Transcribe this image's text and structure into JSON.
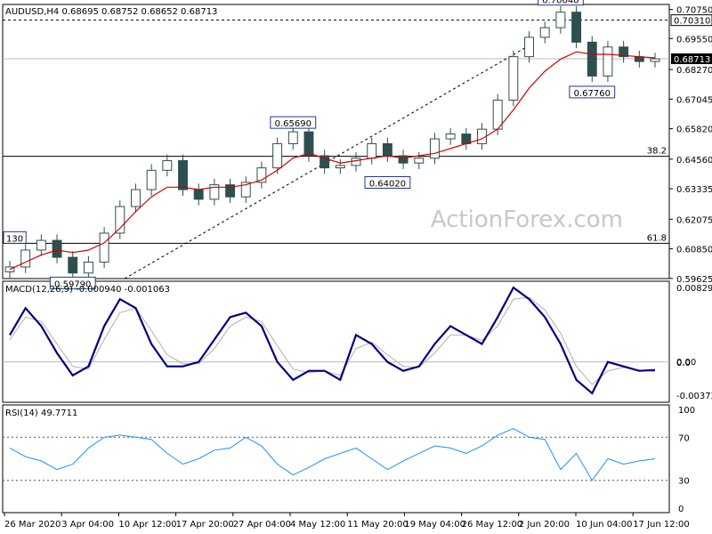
{
  "chart_data": [
    {
      "type": "line",
      "subtype": "candlestick",
      "title": "AUDUSD,H4  0.68695 0.68752 0.68652 0.68713",
      "watermark": "ActionForex.com",
      "y_ticks": [
        "0.70750",
        "0.69550",
        "0.68270",
        "0.67045",
        "0.65820",
        "0.64560",
        "0.63335",
        "0.62075",
        "0.60850",
        "0.59625"
      ],
      "ylim": [
        0.5962,
        0.7096
      ],
      "current_price": "0.68713",
      "resistance_label": "0.70310",
      "annotations": [
        {
          "label": "0.70640",
          "value": 0.7064
        },
        {
          "label": "0.67760",
          "value": 0.6776
        },
        {
          "label": "0.65690",
          "value": 0.6569
        },
        {
          "label": "0.64020",
          "value": 0.6402
        },
        {
          "label": "0.59790",
          "value": 0.5979
        },
        {
          "label": "130",
          "value": 0.613
        }
      ],
      "fib_levels": [
        {
          "label": "38.2",
          "value": 0.6468
        },
        {
          "label": "61.8",
          "value": 0.6108
        }
      ],
      "series": [
        {
          "values": [
            0.601,
            0.608,
            0.612,
            0.605,
            0.5985,
            0.603,
            0.615,
            0.626,
            0.633,
            0.641,
            0.645,
            0.633,
            0.629,
            0.635,
            0.63,
            0.636,
            0.642,
            0.652,
            0.6569,
            0.647,
            0.642,
            0.643,
            0.646,
            0.652,
            0.647,
            0.644,
            0.646,
            0.654,
            0.656,
            0.652,
            0.658,
            0.67,
            0.688,
            0.696,
            0.7,
            0.7064,
            0.694,
            0.68,
            0.692,
            0.688,
            0.686,
            0.6871
          ]
        },
        {
          "values": [
            0.6,
            0.603,
            0.606,
            0.608,
            0.607,
            0.608,
            0.611,
            0.617,
            0.624,
            0.63,
            0.634,
            0.634,
            0.633,
            0.634,
            0.634,
            0.635,
            0.637,
            0.641,
            0.646,
            0.648,
            0.646,
            0.644,
            0.645,
            0.646,
            0.647,
            0.646,
            0.647,
            0.648,
            0.65,
            0.652,
            0.654,
            0.658,
            0.666,
            0.675,
            0.682,
            0.687,
            0.69,
            0.689,
            0.689,
            0.6885,
            0.688,
            0.6875
          ]
        }
      ],
      "x_labels": [
        "26 Mar 2020",
        "3 Apr 04:00",
        "10 Apr 12:00",
        "17 Apr 20:00",
        "27 Apr 04:00",
        "4 May 12:00",
        "11 May 20:00",
        "19 May 04:00",
        "26 May 12:00",
        "2 Jun 20:00",
        "10 Jun 04:00",
        "17 Jun 12:00"
      ]
    },
    {
      "type": "line",
      "title": "MACD(12,26,9) -0.000940 -0.001063",
      "y_ticks": [
        "0.008296",
        "0.00",
        "0.0",
        "-0.003725"
      ],
      "ylim": [
        -0.0045,
        0.009
      ],
      "series": [
        {
          "values": [
            0.003,
            0.006,
            0.004,
            0.001,
            -0.0015,
            -0.0005,
            0.004,
            0.007,
            0.006,
            0.002,
            -0.0005,
            -0.0005,
            0.0,
            0.0025,
            0.005,
            0.0055,
            0.004,
            0.0,
            -0.002,
            -0.001,
            -0.001,
            -0.002,
            0.003,
            0.002,
            0.0,
            -0.001,
            -0.0005,
            0.002,
            0.004,
            0.003,
            0.002,
            0.005,
            0.0083,
            0.007,
            0.005,
            0.002,
            -0.002,
            -0.0035,
            0.0,
            -0.0005,
            -0.001,
            -0.0009
          ]
        },
        {
          "values": [
            0.0025,
            0.005,
            0.0045,
            0.002,
            -0.0005,
            -0.0008,
            0.0025,
            0.0055,
            0.006,
            0.0035,
            0.0008,
            -0.0002,
            -0.0002,
            0.0015,
            0.004,
            0.005,
            0.0045,
            0.0018,
            -0.0008,
            -0.0012,
            -0.001,
            -0.0015,
            0.0015,
            0.0022,
            0.0008,
            -0.0005,
            -0.0006,
            0.001,
            0.003,
            0.003,
            0.0024,
            0.004,
            0.007,
            0.0072,
            0.0058,
            0.0032,
            -0.0005,
            -0.0025,
            -0.001,
            -0.0006,
            -0.0009,
            -0.0011
          ]
        }
      ]
    },
    {
      "type": "line",
      "title": "RSI(14) 49.7711",
      "y_ticks": [
        "100",
        "70",
        "30",
        "0"
      ],
      "ylim": [
        0,
        100
      ],
      "series": [
        {
          "values": [
            60,
            52,
            48,
            40,
            45,
            60,
            70,
            72,
            70,
            68,
            55,
            45,
            50,
            58,
            60,
            70,
            62,
            45,
            35,
            42,
            50,
            55,
            60,
            50,
            40,
            48,
            55,
            62,
            60,
            55,
            62,
            72,
            78,
            70,
            68,
            40,
            55,
            30,
            50,
            45,
            48,
            50
          ]
        }
      ]
    }
  ]
}
